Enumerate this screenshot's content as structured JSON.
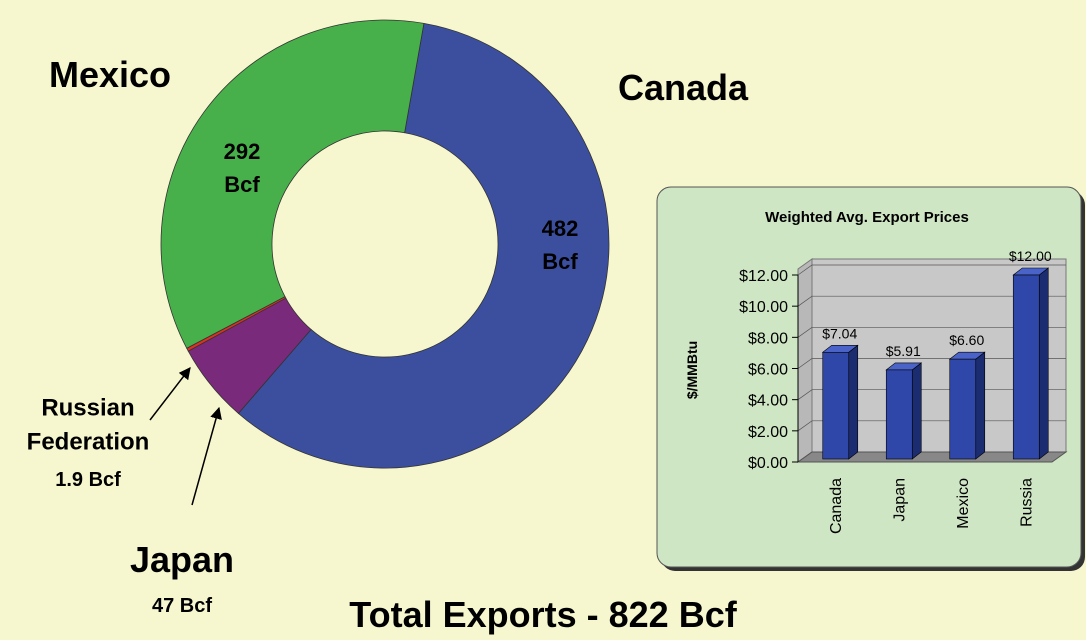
{
  "chart_data": [
    {
      "type": "donut",
      "title": "Total Exports - 822 Bcf",
      "categories": [
        "Canada",
        "Japan",
        "Russian Federation",
        "Mexico"
      ],
      "values": [
        482,
        47,
        1.9,
        292
      ],
      "value_labels": [
        "482 Bcf",
        "47 Bcf",
        "1.9 Bcf",
        "292 Bcf"
      ],
      "colors": [
        "#3c4f9e",
        "#7a2a7a",
        "#e03020",
        "#47b04b"
      ]
    },
    {
      "type": "bar",
      "title": "Weighted Avg. Export Prices",
      "y_label": "$/MMBtu",
      "categories": [
        "Canada",
        "Japan",
        "Mexico",
        "Russia"
      ],
      "values": [
        7.04,
        5.91,
        6.6,
        12.0
      ],
      "value_labels": [
        "$7.04",
        "$5.91",
        "$6.60",
        "$12.00"
      ],
      "color": "#2f47a8",
      "ylim": [
        0,
        12
      ],
      "yticks": [
        {
          "value": 0,
          "label": "$0.00"
        },
        {
          "value": 2,
          "label": "$2.00"
        },
        {
          "value": 4,
          "label": "$4.00"
        },
        {
          "value": 6,
          "label": "$6.00"
        },
        {
          "value": 8,
          "label": "$8.00"
        },
        {
          "value": 10,
          "label": "$10.00"
        },
        {
          "value": 12,
          "label": "$12.00"
        }
      ],
      "grid": true
    }
  ]
}
